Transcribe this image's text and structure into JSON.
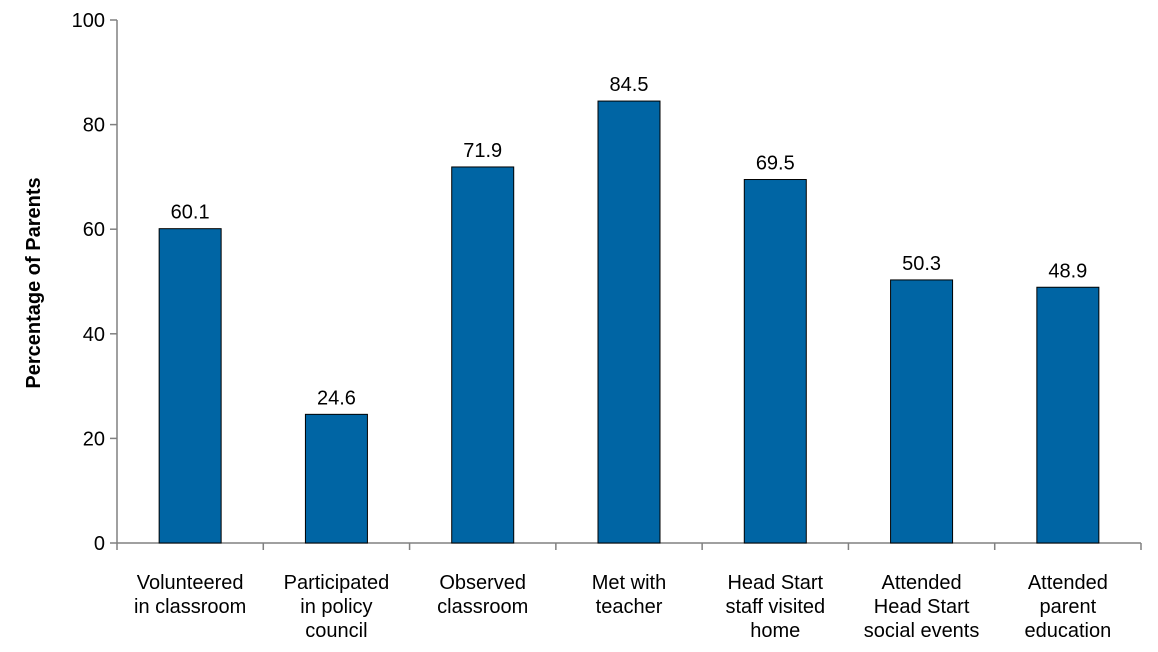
{
  "chart_data": {
    "type": "bar",
    "title": "",
    "xlabel": "",
    "ylabel": "Percentage of Parents",
    "ylim": [
      0,
      100
    ],
    "yticks": [
      0,
      20,
      40,
      60,
      80,
      100
    ],
    "grid": false,
    "legend": "none",
    "bar_color": "#0065A4",
    "categories": [
      [
        "Volunteered",
        "in classroom"
      ],
      [
        "Participated",
        "in policy",
        "council"
      ],
      [
        "Observed",
        "classroom"
      ],
      [
        "Met with",
        "teacher"
      ],
      [
        "Head Start",
        "staff visited",
        "home"
      ],
      [
        "Attended",
        "Head Start",
        "social events"
      ],
      [
        "Attended",
        "parent",
        "education"
      ]
    ],
    "values": [
      60.1,
      24.6,
      71.9,
      84.5,
      69.5,
      50.3,
      48.9
    ]
  }
}
